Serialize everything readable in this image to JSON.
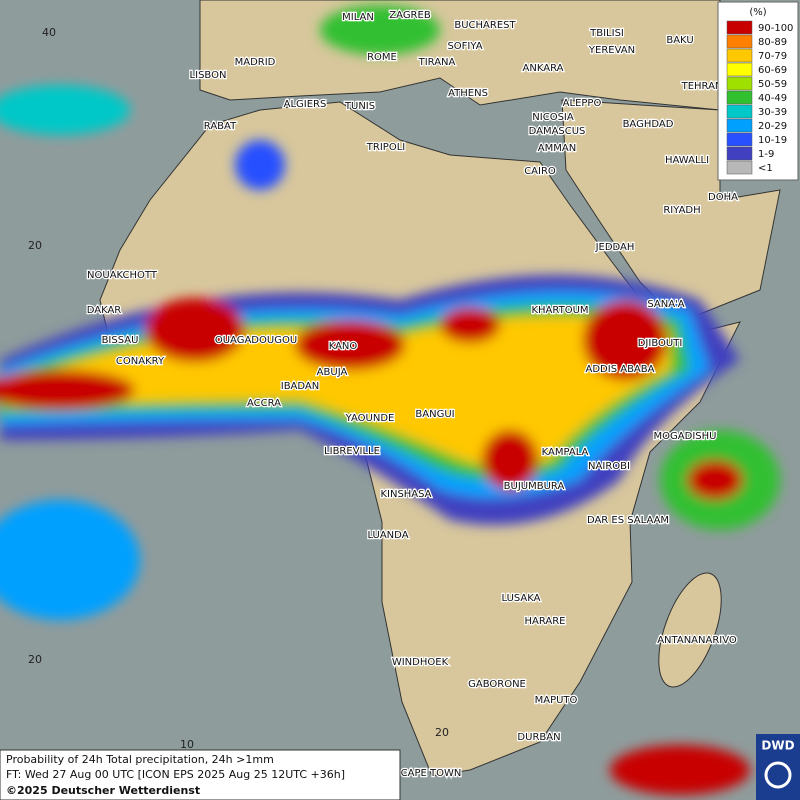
{
  "map": {
    "cities": [
      "MILAN",
      "ZAGREB",
      "BUCHAREST",
      "TBILISI",
      "BAKU",
      "YEREVAN",
      "ROME",
      "SOFIYA",
      "TIRANA",
      "ANKARA",
      "MADRID",
      "LISBON",
      "TEHRAN",
      "ATHENS",
      "ALGIERS",
      "TUNIS",
      "ALEPPO",
      "RABAT",
      "NICOSIA",
      "BAGHDAD",
      "DAMASCUS",
      "AMMAN",
      "TRIPOLI",
      "HAWALLI",
      "CAIRO",
      "DOHA",
      "RIYADH",
      "JEDDAH",
      "NOUAKCHOTT",
      "DAKAR",
      "SANA'A",
      "KHARTOUM",
      "BISSAU",
      "OUAGADOUGOU",
      "KANO",
      "DJIBOUTI",
      "CONAKRY",
      "ABUJA",
      "ADDIS ABABA",
      "IBADAN",
      "ACCRA",
      "YAOUNDE",
      "BANGUI",
      "MOGADISHU",
      "LIBREVILLE",
      "KAMPALA",
      "NAIROBI",
      "KINSHASA",
      "BUJUMBURA",
      "DAR ES SALAAM",
      "LUANDA",
      "LUSAKA",
      "HARARE",
      "ANTANANARIVO",
      "WINDHOEK",
      "GABORONE",
      "MAPUTO",
      "DURBAN",
      "CAPE TOWN"
    ],
    "grid_labels": [
      "40",
      "20",
      "20",
      "10",
      "20"
    ]
  },
  "legend": {
    "title": "(%)",
    "items": [
      {
        "label": "90-100",
        "color": "#c80000"
      },
      {
        "label": "80-89",
        "color": "#ff8000"
      },
      {
        "label": "70-79",
        "color": "#ffc800"
      },
      {
        "label": "60-69",
        "color": "#ffff00"
      },
      {
        "label": "50-59",
        "color": "#a0e000"
      },
      {
        "label": "40-49",
        "color": "#30c030"
      },
      {
        "label": "30-39",
        "color": "#00c8c8"
      },
      {
        "label": "20-29",
        "color": "#00a0ff"
      },
      {
        "label": "10-19",
        "color": "#2850ff"
      },
      {
        "label": "1-9",
        "color": "#4040c0"
      },
      {
        "label": "<1",
        "color": "#b8b8b8"
      }
    ]
  },
  "info": {
    "line1": "Probability of 24h Total precipitation, 24h >1mm",
    "line2": "FT: Wed 27 Aug 00 UTC [ICON EPS 2025 Aug 25 12UTC +36h]",
    "copyright": "©2025 Deutscher Wetterdienst"
  },
  "logo": "DWD"
}
